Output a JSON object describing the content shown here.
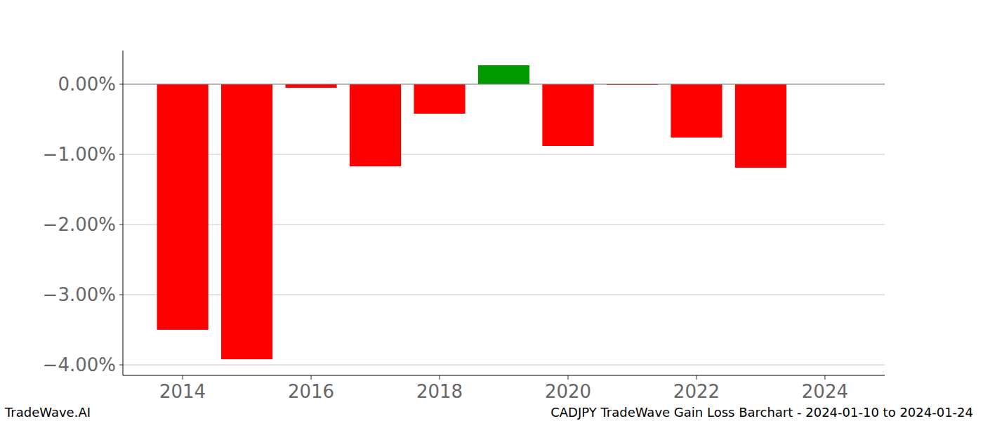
{
  "chart_data": {
    "type": "bar",
    "title": "CADJPY TradeWave Gain Loss Barchart - 2024-01-10 to 2024-01-24",
    "source": "TradeWave.AI",
    "x": [
      2014,
      2015,
      2016,
      2017,
      2018,
      2019,
      2020,
      2021,
      2022,
      2023
    ],
    "values": [
      -3.5,
      -3.92,
      -0.05,
      -1.17,
      -0.42,
      0.27,
      -0.88,
      -0.01,
      -0.76,
      -1.19
    ],
    "colors": [
      "#ff0000",
      "#ff0000",
      "#ff0000",
      "#ff0000",
      "#ff0000",
      "#009900",
      "#ff0000",
      "#ff0000",
      "#ff0000",
      "#ff0000"
    ],
    "xlim": [
      2013.07,
      2024.93
    ],
    "xticks": [
      2014,
      2016,
      2018,
      2020,
      2022,
      2024
    ],
    "ylim": [
      -4.15,
      0.48
    ],
    "yticks": [
      {
        "value": 0,
        "label": "0.00%"
      },
      {
        "value": -1,
        "label": "−1.00%"
      },
      {
        "value": -2,
        "label": "−2.00%"
      },
      {
        "value": -3,
        "label": "−3.00%"
      },
      {
        "value": -4,
        "label": "−4.00%"
      }
    ],
    "grid": true
  }
}
